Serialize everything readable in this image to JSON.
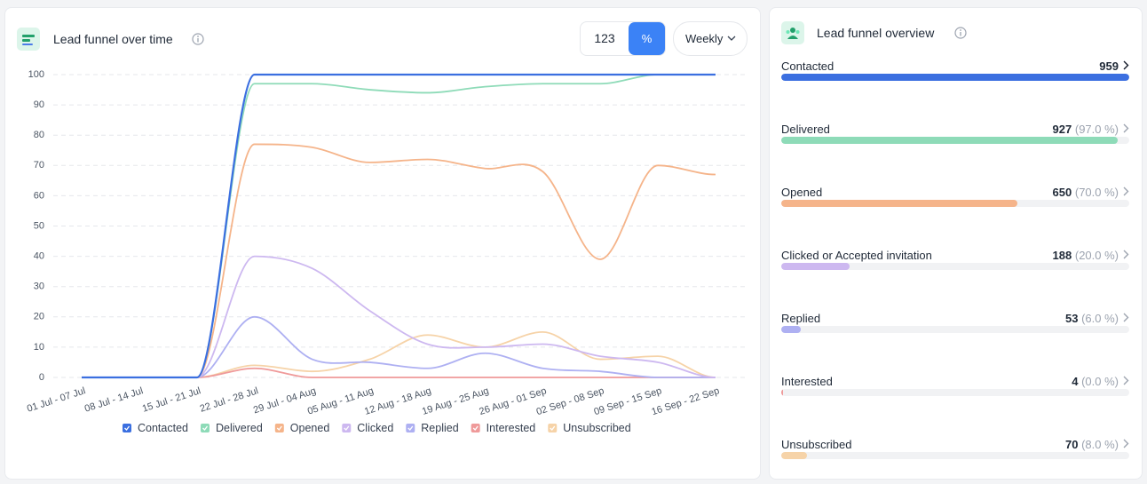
{
  "header": {
    "title": "Lead funnel over time",
    "toggle_count": "123",
    "toggle_percent": "%",
    "period": "Weekly"
  },
  "chart_data": {
    "type": "line",
    "categories": [
      "01 Jul - 07 Jul",
      "08 Jul - 14 Jul",
      "15 Jul - 21 Jul",
      "22 Jul - 28 Jul",
      "29 Jul - 04 Aug",
      "05 Aug - 11 Aug",
      "12 Aug - 18 Aug",
      "19 Aug - 25 Aug",
      "26 Aug - 01 Sep",
      "02 Sep - 08 Sep",
      "09 Sep - 15 Sep",
      "16 Sep - 22 Sep"
    ],
    "series": [
      {
        "name": "Contacted",
        "color": "#3b6fe0",
        "values": [
          0,
          0,
          0,
          100,
          100,
          100,
          100,
          100,
          100,
          100,
          100,
          100
        ]
      },
      {
        "name": "Delivered",
        "color": "#8edbb8",
        "values": [
          0,
          0,
          0,
          97,
          97,
          95,
          94,
          96,
          97,
          97,
          100,
          100
        ]
      },
      {
        "name": "Opened",
        "color": "#f5b48a",
        "values": [
          0,
          0,
          0,
          77,
          76,
          71,
          72,
          69,
          68,
          39,
          70,
          67
        ]
      },
      {
        "name": "Clicked",
        "color": "#cdb8f0",
        "values": [
          0,
          0,
          0,
          40,
          36,
          22,
          11,
          10,
          11,
          7,
          5,
          0
        ]
      },
      {
        "name": "Replied",
        "color": "#aeb0f2",
        "values": [
          0,
          0,
          0,
          20,
          6,
          5,
          3,
          8,
          3,
          2,
          0,
          0
        ]
      },
      {
        "name": "Interested",
        "color": "#ef9a9a",
        "values": [
          0,
          0,
          0,
          3,
          0,
          0,
          0,
          0,
          0,
          0,
          0,
          0
        ]
      },
      {
        "name": "Unsubscribed",
        "color": "#f6d3a8",
        "values": [
          0,
          0,
          0,
          4,
          2,
          6,
          14,
          10,
          15,
          6,
          7,
          0
        ]
      }
    ],
    "ylim": [
      0,
      100
    ],
    "yticks": [
      0,
      10,
      20,
      30,
      40,
      50,
      60,
      70,
      80,
      90,
      100
    ],
    "grid": true
  },
  "overview": {
    "title": "Lead funnel overview",
    "items": [
      {
        "name": "Contacted",
        "count": 959,
        "color": "#3b6fe0"
      },
      {
        "name": "Delivered",
        "count": 927,
        "percent": "(97.0 %)",
        "color": "#8edbb8"
      },
      {
        "name": "Opened",
        "count": 650,
        "percent": "(70.0 %)",
        "color": "#f5b48a"
      },
      {
        "name": "Clicked or Accepted invitation",
        "count": 188,
        "percent": "(20.0 %)",
        "color": "#cdb8f0"
      },
      {
        "name": "Replied",
        "count": 53,
        "percent": "(6.0 %)",
        "color": "#aeb0f2"
      },
      {
        "name": "Interested",
        "count": 4,
        "percent": "(0.0 %)",
        "color": "#ef9a9a"
      },
      {
        "name": "Unsubscribed",
        "count": 70,
        "percent": "(8.0 %)",
        "color": "#f6d3a8"
      }
    ]
  }
}
